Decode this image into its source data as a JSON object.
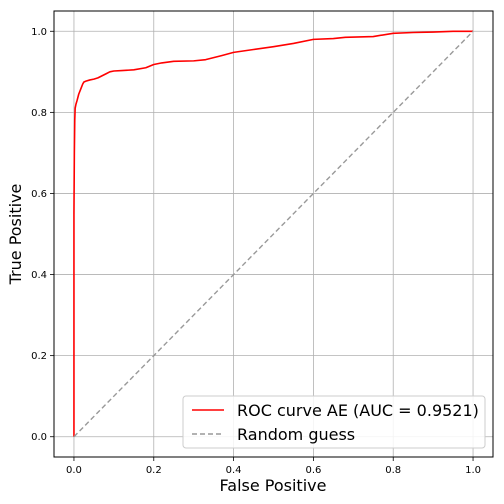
{
  "chart_data": {
    "type": "line",
    "title": "",
    "xlabel": "False Positive",
    "ylabel": "True Positive",
    "xlim": [
      -0.05,
      1.05
    ],
    "ylim": [
      -0.05,
      1.05
    ],
    "grid": true,
    "legend_position": "lower-right",
    "x_ticks": [
      0.0,
      0.2,
      0.4,
      0.6,
      0.8,
      1.0
    ],
    "y_ticks": [
      0.0,
      0.2,
      0.4,
      0.6,
      0.8,
      1.0
    ],
    "x_tick_labels": [
      "0.0",
      "0.2",
      "0.4",
      "0.6",
      "0.8",
      "1.0"
    ],
    "y_tick_labels": [
      "0.0",
      "0.2",
      "0.4",
      "0.6",
      "0.8",
      "1.0"
    ],
    "series": [
      {
        "name": "ROC curve AE (AUC = 0.9521)",
        "color": "#ff0000",
        "style": "solid",
        "x": [
          0.0,
          0.0,
          0.001,
          0.002,
          0.003,
          0.005,
          0.008,
          0.012,
          0.018,
          0.022,
          0.025,
          0.03,
          0.04,
          0.05,
          0.06,
          0.07,
          0.08,
          0.09,
          0.1,
          0.12,
          0.15,
          0.18,
          0.2,
          0.22,
          0.25,
          0.3,
          0.33,
          0.35,
          0.37,
          0.4,
          0.45,
          0.5,
          0.55,
          0.6,
          0.65,
          0.68,
          0.75,
          0.8,
          0.85,
          0.9,
          0.95,
          1.0
        ],
        "y": [
          0.0,
          0.55,
          0.7,
          0.78,
          0.81,
          0.82,
          0.83,
          0.845,
          0.86,
          0.87,
          0.875,
          0.877,
          0.88,
          0.882,
          0.885,
          0.89,
          0.895,
          0.9,
          0.902,
          0.903,
          0.905,
          0.91,
          0.918,
          0.922,
          0.926,
          0.927,
          0.93,
          0.935,
          0.94,
          0.948,
          0.955,
          0.962,
          0.97,
          0.98,
          0.982,
          0.985,
          0.987,
          0.995,
          0.997,
          0.998,
          1.0,
          1.0
        ]
      },
      {
        "name": "Random guess",
        "color": "#999999",
        "style": "dashed",
        "x": [
          0.0,
          1.0
        ],
        "y": [
          0.0,
          1.0
        ]
      }
    ]
  }
}
